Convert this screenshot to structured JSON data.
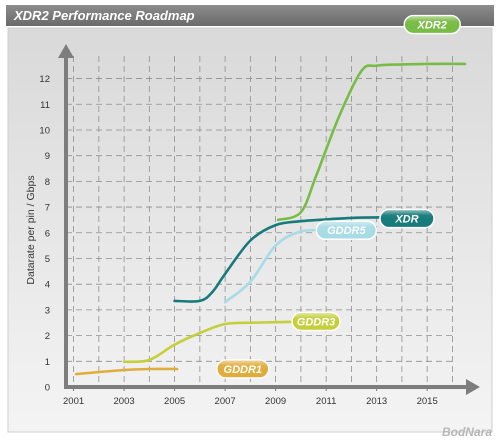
{
  "chart_data": {
    "type": "line",
    "title": "XDR2 Performance Roadmap",
    "ylabel": "Datarate per pin / Gbps",
    "xlabel": "",
    "xlim": [
      2000.7,
      2016.3
    ],
    "ylim": [
      0,
      12.8
    ],
    "grid": true,
    "x_ticks": [
      "2001",
      "2003",
      "2005",
      "2007",
      "2009",
      "2011",
      "2013",
      "2015"
    ],
    "y_ticks": [
      "0",
      "1",
      "2",
      "3",
      "4",
      "5",
      "6",
      "7",
      "8",
      "9",
      "10",
      "11",
      "12"
    ],
    "series": [
      {
        "name": "GDDR1",
        "color": "#e0ad3d",
        "x": [
          2001.1,
          2002,
          2003,
          2004,
          2005.1
        ],
        "y": [
          0.5,
          0.58,
          0.66,
          0.7,
          0.7
        ]
      },
      {
        "name": "GDDR3",
        "color": "#c4cf3b",
        "x": [
          2003,
          2004,
          2005,
          2006,
          2007,
          2008.1,
          2009,
          2010.1
        ],
        "y": [
          0.98,
          1.05,
          1.65,
          2.1,
          2.45,
          2.5,
          2.52,
          2.55
        ]
      },
      {
        "name": "XDR",
        "color": "#167b7a",
        "x": [
          2005,
          2006,
          2006.5,
          2007,
          2008,
          2009,
          2010,
          2011,
          2012,
          2013,
          2013.6
        ],
        "y": [
          3.35,
          3.35,
          3.7,
          4.4,
          5.7,
          6.3,
          6.45,
          6.52,
          6.58,
          6.6,
          6.6
        ]
      },
      {
        "name": "GDDR5",
        "color": "#a7dbe6",
        "x": [
          2007,
          2008,
          2009,
          2010,
          2011.2
        ],
        "y": [
          3.3,
          4.1,
          5.5,
          6.05,
          6.1
        ]
      },
      {
        "name": "XDR2",
        "color": "#78bc45",
        "x": [
          2009.1,
          2010,
          2010.6,
          2011.5,
          2012.4,
          2013,
          2014,
          2015,
          2016.5
        ],
        "y": [
          6.5,
          6.8,
          8.2,
          10.5,
          12.3,
          12.5,
          12.55,
          12.57,
          12.57
        ]
      }
    ]
  },
  "watermark": "BodNara"
}
